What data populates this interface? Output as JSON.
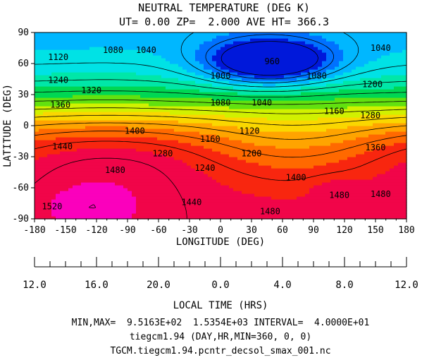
{
  "chart_data": {
    "type": "heatmap",
    "title": "NEUTRAL TEMPERATURE (DEG K)",
    "subtitle": "UT= 0.00 ZP=  2.000 AVE HT= 366.3",
    "xlabel": "LONGITUDE (DEG)",
    "ylabel": "LATITUDE (DEG)",
    "xlim": [
      -180,
      180
    ],
    "ylim": [
      -90,
      90
    ],
    "x_ticks": [
      "-180",
      "-150",
      "-120",
      "-90",
      "-60",
      "-30",
      "0",
      "30",
      "60",
      "90",
      "120",
      "150",
      "180"
    ],
    "y_ticks": [
      "90",
      "60",
      "30",
      "0",
      "-30",
      "-60",
      "-90"
    ],
    "secondary_axis": {
      "label": "LOCAL TIME (HRS)",
      "ticks": [
        {
          "lon": -180,
          "text": "12.0"
        },
        {
          "lon": -120,
          "text": "16.0"
        },
        {
          "lon": -60,
          "text": "20.0"
        },
        {
          "lon": 0,
          "text": "0.0"
        },
        {
          "lon": 60,
          "text": "4.0"
        },
        {
          "lon": 120,
          "text": "8.0"
        },
        {
          "lon": 180,
          "text": "12.0"
        }
      ]
    },
    "contour_levels": [
      960,
      1000,
      1040,
      1080,
      1120,
      1160,
      1200,
      1240,
      1280,
      1320,
      1360,
      1400,
      1440,
      1480,
      1520
    ],
    "contour_labels": [
      {
        "text": "960",
        "lon": 50,
        "lat": 62
      },
      {
        "text": "1000",
        "lon": 0,
        "lat": 48
      },
      {
        "text": "1040",
        "lon": -72,
        "lat": 73
      },
      {
        "text": "1040",
        "lon": 40,
        "lat": 22
      },
      {
        "text": "1040",
        "lon": 155,
        "lat": 75
      },
      {
        "text": "1080",
        "lon": -104,
        "lat": 73
      },
      {
        "text": "1080",
        "lon": 0,
        "lat": 22
      },
      {
        "text": "1080",
        "lon": 93,
        "lat": 48
      },
      {
        "text": "1120",
        "lon": -157,
        "lat": 66
      },
      {
        "text": "1120",
        "lon": 28,
        "lat": -5
      },
      {
        "text": "1160",
        "lon": -10,
        "lat": -13
      },
      {
        "text": "1160",
        "lon": 110,
        "lat": 14
      },
      {
        "text": "1200",
        "lon": 30,
        "lat": -27
      },
      {
        "text": "1200",
        "lon": 147,
        "lat": 40
      },
      {
        "text": "1240",
        "lon": -157,
        "lat": 44
      },
      {
        "text": "1240",
        "lon": -15,
        "lat": -41
      },
      {
        "text": "1280",
        "lon": -56,
        "lat": -27
      },
      {
        "text": "1280",
        "lon": 145,
        "lat": 10
      },
      {
        "text": "1320",
        "lon": -125,
        "lat": 34
      },
      {
        "text": "1360",
        "lon": -155,
        "lat": 20
      },
      {
        "text": "1360",
        "lon": 150,
        "lat": -21
      },
      {
        "text": "1400",
        "lon": -83,
        "lat": -5
      },
      {
        "text": "1400",
        "lon": 73,
        "lat": -50
      },
      {
        "text": "1440",
        "lon": -153,
        "lat": -20
      },
      {
        "text": "1440",
        "lon": -28,
        "lat": -74
      },
      {
        "text": "1480",
        "lon": -102,
        "lat": -43
      },
      {
        "text": "1480",
        "lon": 48,
        "lat": -83
      },
      {
        "text": "1480",
        "lon": 115,
        "lat": -67
      },
      {
        "text": "1480",
        "lon": 155,
        "lat": -66
      },
      {
        "text": "1520",
        "lon": -163,
        "lat": -78
      }
    ],
    "colorbar": false,
    "grid": false
  },
  "footer": {
    "line1": "MIN,MAX=  9.5163E+02  1.5354E+03 INTERVAL=  4.0000E+01",
    "line2": "tiegcm1.94 (DAY,HR,MIN=360, 0, 0)",
    "line3": "TGCM.tiegcm1.94.pcntr_decsol_smax_001.nc"
  }
}
